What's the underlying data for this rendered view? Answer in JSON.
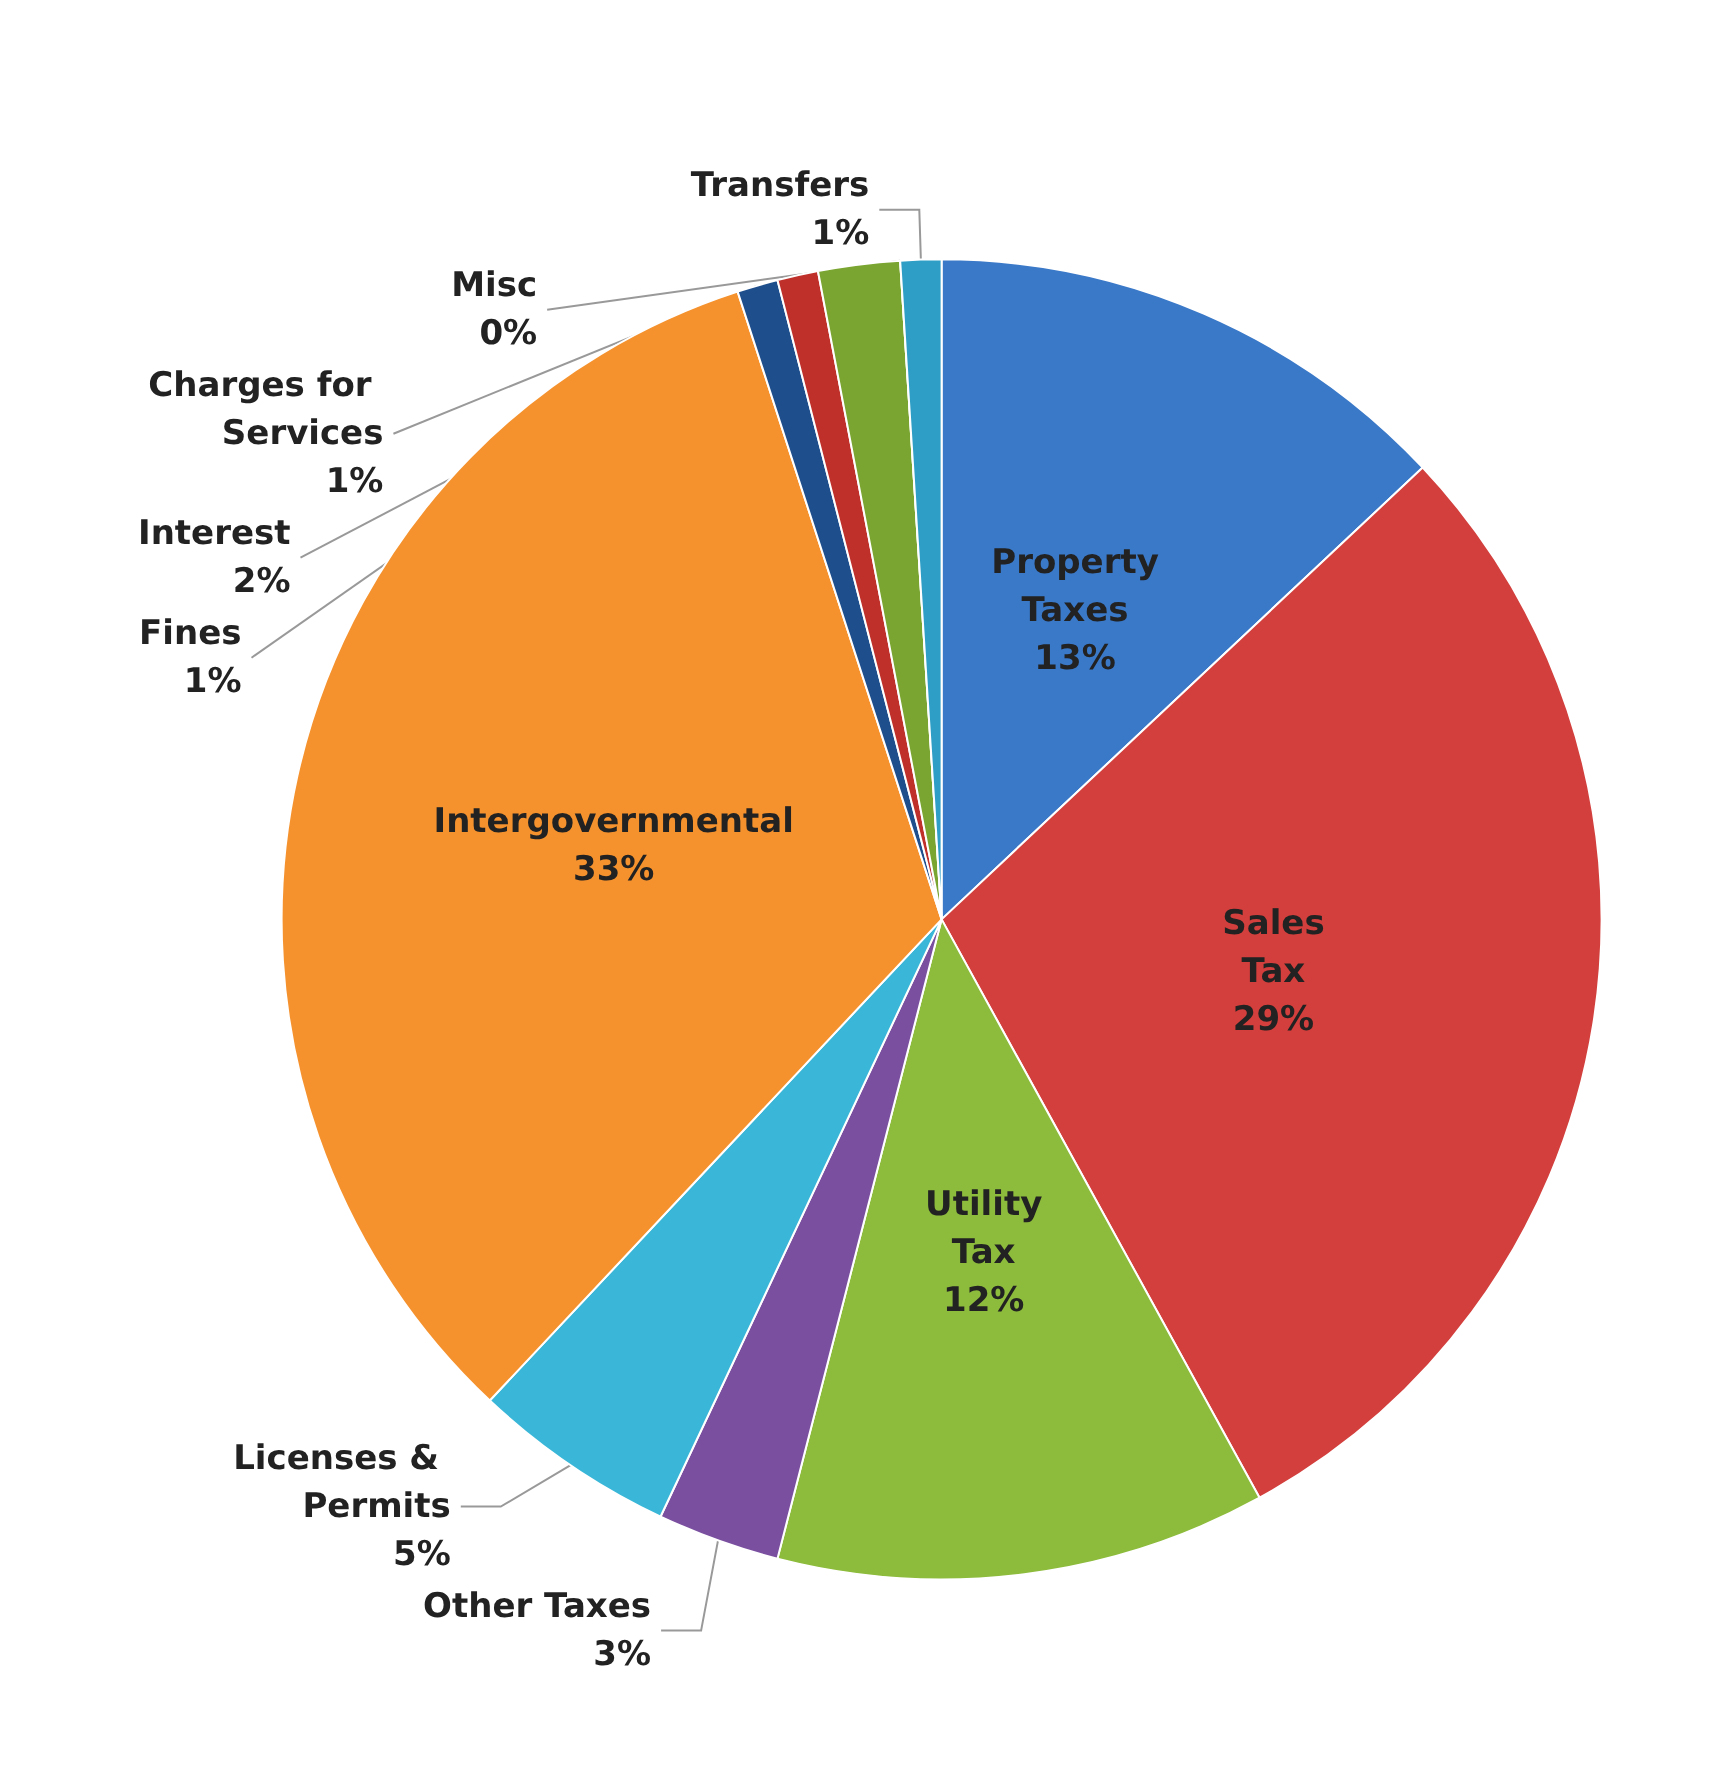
{
  "chart_data": {
    "type": "pie",
    "categories": [
      "Property Taxes",
      "Sales Tax",
      "Utility Tax",
      "Other Taxes",
      "Licenses & Permits",
      "Intergovernmental",
      "Charges for Services",
      "Fines",
      "Interest",
      "Misc",
      "Transfers"
    ],
    "values": [
      13,
      29,
      12,
      3,
      5,
      33,
      1,
      1,
      2,
      0,
      1
    ],
    "value_labels": [
      "13%",
      "29%",
      "12%",
      "3%",
      "5%",
      "33%",
      "1%",
      "1%",
      "2%",
      "0%",
      "1%"
    ],
    "colors": [
      "#3a78c8",
      "#d23f3c",
      "#8dbb3c",
      "#7a4fa0",
      "#3ab7d8",
      "#f5922e",
      "#1f4e8c",
      "#c0302b",
      "#7aa531",
      "#6b4a94",
      "#2e9ec6"
    ],
    "legend": false
  }
}
